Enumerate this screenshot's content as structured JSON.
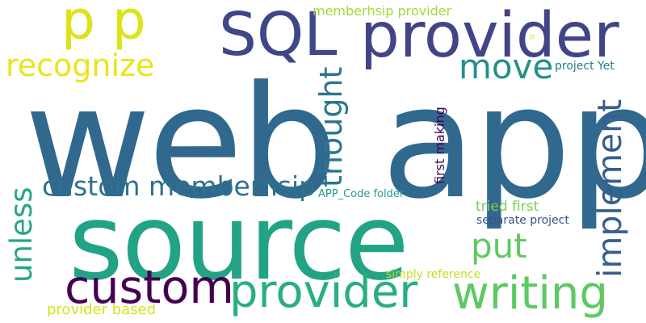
{
  "words": [
    {
      "text": "web app",
      "color": "#31688e"
    },
    {
      "text": "source",
      "color": "#22a385"
    },
    {
      "text": "SQL",
      "color": "#3f4788"
    },
    {
      "text": "provider",
      "color": "#414487"
    },
    {
      "text": "custom",
      "color": "#440154"
    },
    {
      "text": "provider",
      "color": "#29af7f"
    },
    {
      "text": "writing",
      "color": "#5ec962"
    },
    {
      "text": "p p",
      "color": "#dde318"
    },
    {
      "text": "recognize",
      "color": "#eae51a"
    },
    {
      "text": "custom memberhsip",
      "color": "#2c728e"
    },
    {
      "text": "move",
      "color": "#21918c"
    },
    {
      "text": "thought",
      "color": "#2a768e"
    },
    {
      "text": "implement",
      "color": "#355f8d"
    },
    {
      "text": "unless",
      "color": "#26a784"
    },
    {
      "text": "put",
      "color": "#5ec962"
    },
    {
      "text": "memberhsip provider",
      "color": "#a2da37"
    },
    {
      "text": "project Yet",
      "color": "#287c8e"
    },
    {
      "text": "first making",
      "color": "#440154"
    },
    {
      "text": "p",
      "color": "#e5e419"
    },
    {
      "text": "APP_Code folder",
      "color": "#1f9e89"
    },
    {
      "text": "tried first",
      "color": "#7ad151"
    },
    {
      "text": "separate project",
      "color": "#3b528b"
    },
    {
      "text": "simply reference",
      "color": "#c2df23"
    },
    {
      "text": "provider based",
      "color": "#d8e219"
    }
  ]
}
